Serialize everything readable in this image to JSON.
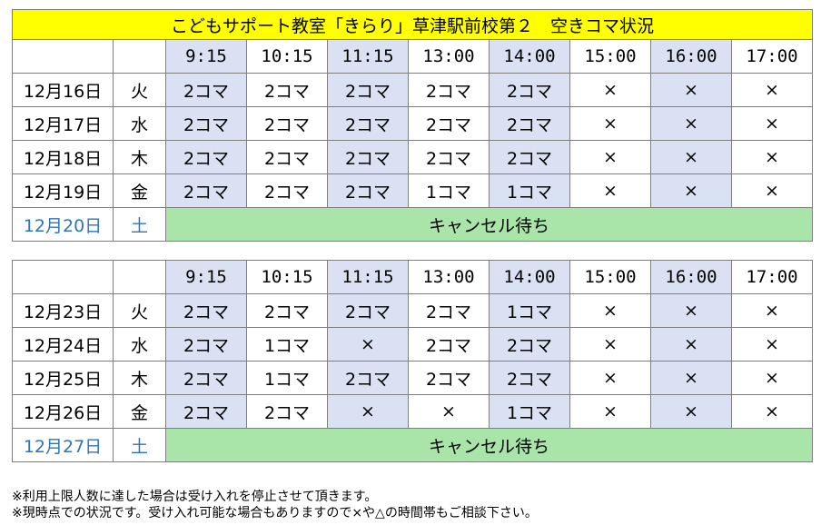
{
  "title": "こどもサポート教室「きらり」草津駅前校第２　空きコマ状況",
  "colors": {
    "title_bg": "#ffff00",
    "shade": "#d9e1f2",
    "cancel_bg": "#a9e5a9",
    "saturday_text": "#2e75b6"
  },
  "times": [
    "9:15",
    "10:15",
    "11:15",
    "13:00",
    "14:00",
    "15:00",
    "16:00",
    "17:00"
  ],
  "week1": {
    "rows": [
      {
        "date": "12月16日",
        "dow": "火",
        "cells": [
          "2コマ",
          "2コマ",
          "2コマ",
          "2コマ",
          "2コマ",
          "×",
          "×",
          "×"
        ]
      },
      {
        "date": "12月17日",
        "dow": "水",
        "cells": [
          "2コマ",
          "2コマ",
          "2コマ",
          "2コマ",
          "2コマ",
          "×",
          "×",
          "×"
        ]
      },
      {
        "date": "12月18日",
        "dow": "木",
        "cells": [
          "2コマ",
          "2コマ",
          "2コマ",
          "2コマ",
          "2コマ",
          "×",
          "×",
          "×"
        ]
      },
      {
        "date": "12月19日",
        "dow": "金",
        "cells": [
          "2コマ",
          "2コマ",
          "2コマ",
          "1コマ",
          "1コマ",
          "×",
          "×",
          "×"
        ]
      }
    ],
    "saturday": {
      "date": "12月20日",
      "dow": "土",
      "status": "キャンセル待ち"
    }
  },
  "week2": {
    "rows": [
      {
        "date": "12月23日",
        "dow": "火",
        "cells": [
          "2コマ",
          "2コマ",
          "2コマ",
          "2コマ",
          "1コマ",
          "×",
          "×",
          "×"
        ]
      },
      {
        "date": "12月24日",
        "dow": "水",
        "cells": [
          "2コマ",
          "1コマ",
          "×",
          "2コマ",
          "2コマ",
          "×",
          "×",
          "×"
        ]
      },
      {
        "date": "12月25日",
        "dow": "木",
        "cells": [
          "2コマ",
          "1コマ",
          "2コマ",
          "2コマ",
          "2コマ",
          "×",
          "×",
          "×"
        ]
      },
      {
        "date": "12月26日",
        "dow": "金",
        "cells": [
          "2コマ",
          "2コマ",
          "×",
          "×",
          "1コマ",
          "×",
          "×",
          "×"
        ]
      }
    ],
    "saturday": {
      "date": "12月27日",
      "dow": "土",
      "status": "キャンセル待ち"
    }
  },
  "notes": [
    "※利用上限人数に達した場合は受け入れを停止させて頂きます。",
    "※現時点での状況です。受け入れ可能な場合もありますので×や△の時間帯もご相談下さい。"
  ]
}
